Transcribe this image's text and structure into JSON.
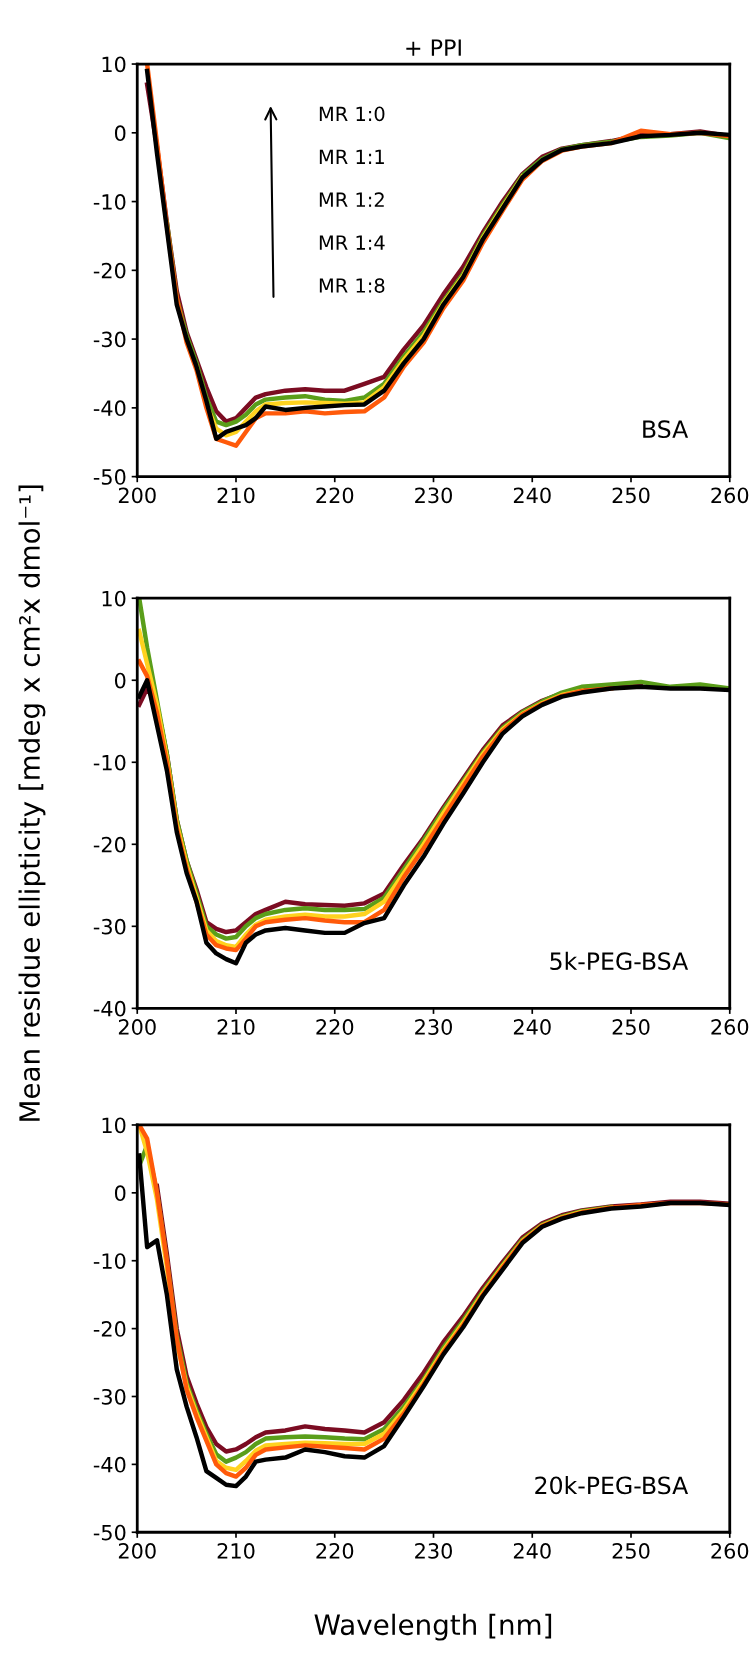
{
  "chart_data": [
    {
      "type": "line",
      "title": "+ PPI",
      "annotations": [
        "MR 1:0",
        "MR 1:1",
        "MR 1:2",
        "MR 1:4",
        "MR 1:8",
        "BSA"
      ],
      "x": [
        201,
        202,
        203,
        204,
        205,
        206,
        207,
        208,
        209,
        210,
        211,
        212,
        213,
        215,
        217,
        219,
        221,
        223,
        225,
        227,
        229,
        231,
        233,
        235,
        237,
        239,
        241,
        243,
        245,
        248,
        251,
        254,
        257,
        260
      ],
      "xlim": [
        200,
        260
      ],
      "xticks": [
        200,
        210,
        220,
        230,
        240,
        250,
        260
      ],
      "ylim": [
        -50,
        10
      ],
      "yticks": [
        -50,
        -40,
        -30,
        -20,
        -10,
        0,
        10
      ],
      "grid": false,
      "legend": false,
      "series": [
        {
          "color": "#7b0c22",
          "values": [
            7,
            -2,
            -13,
            -23,
            -29,
            -33,
            -37,
            -40.5,
            -42,
            -41.5,
            -40,
            -38.5,
            -38,
            -37.5,
            -37.3,
            -37.5,
            -37.5,
            -36.5,
            -35.5,
            -31.5,
            -28,
            -23.5,
            -19.5,
            -14.5,
            -10,
            -6,
            -3.5,
            -2.3,
            -1.8,
            -1.2,
            -0.3,
            -0.2,
            0.2,
            -0.5
          ]
        },
        {
          "color": "#5a9e1a",
          "values": [
            null,
            null,
            -13,
            -24,
            -29.5,
            -33.5,
            -38.5,
            -42,
            -42.5,
            -42,
            -41,
            -39.5,
            -38.8,
            -38.5,
            -38.3,
            -38.8,
            -39,
            -38.5,
            -36.5,
            -32.5,
            -29,
            -24.5,
            -20.5,
            -15,
            -10.5,
            -6.2,
            -3.8,
            -2.4,
            -1.8,
            -1.3,
            -0.6,
            -0.4,
            0,
            -0.8
          ]
        },
        {
          "color": "#ffd21f",
          "values": [
            null,
            null,
            null,
            null,
            null,
            -34,
            -39.5,
            -43,
            -44,
            -43.5,
            -42,
            -40.5,
            -39.5,
            -39.3,
            -39.2,
            -39.3,
            -39.4,
            -39.2,
            -37,
            -33,
            -29.5,
            -24.8,
            -20.8,
            -15.3,
            -10.8,
            -6.4,
            null,
            null,
            null,
            null,
            null,
            null,
            null,
            null
          ]
        },
        {
          "color": "#ff5a0a",
          "values": [
            10,
            -1.5,
            -13.5,
            -24,
            -30.5,
            -34.5,
            -40,
            -44.5,
            -45,
            -45.5,
            -43.5,
            -41.5,
            -40.8,
            -40.8,
            -40.5,
            -40.8,
            -40.6,
            -40.5,
            -38.5,
            -34,
            -30.5,
            -25.5,
            -21.5,
            -16,
            -11.3,
            -6.8,
            -4.1,
            -2.6,
            -2,
            -1.5,
            0.3,
            -0.2,
            0,
            -0.5
          ]
        },
        {
          "color": "#000000",
          "values": [
            9,
            -3,
            -14,
            -25,
            -30,
            -34,
            -39,
            -44.5,
            -43.5,
            -43,
            -42.5,
            -41.5,
            -39.8,
            -40.3,
            -40,
            -39.8,
            -39.6,
            -39.5,
            -37.5,
            -33.5,
            -30,
            -25,
            -21,
            -15.5,
            -11,
            -6.5,
            -4,
            -2.5,
            -2,
            -1.5,
            -0.5,
            -0.3,
            0,
            -0.3
          ]
        }
      ]
    },
    {
      "type": "line",
      "ylabel": "Mean residue ellipticity [mdeg x cm²x dmol⁻¹]",
      "annotations": [
        "5k-PEG-BSA"
      ],
      "x": [
        200.2,
        201,
        202,
        203,
        204,
        205,
        206,
        207,
        208,
        209,
        210,
        211,
        212,
        213,
        215,
        217,
        219,
        221,
        223,
        225,
        227,
        229,
        231,
        233,
        235,
        237,
        239,
        241,
        243,
        245,
        248,
        251,
        254,
        257,
        260
      ],
      "xlim": [
        200,
        260
      ],
      "xticks": [
        200,
        210,
        220,
        230,
        240,
        250,
        260
      ],
      "ylim": [
        -40,
        10
      ],
      "yticks": [
        -40,
        -30,
        -20,
        -10,
        0,
        10
      ],
      "grid": false,
      "legend": false,
      "series": [
        {
          "color": "#7b0c22",
          "values": [
            -3,
            -1,
            -3,
            -9,
            -17,
            -22,
            -25.5,
            -29.5,
            -30.3,
            -30.7,
            -30.5,
            -29.5,
            -28.5,
            -28,
            -27,
            -27.3,
            -27.4,
            -27.5,
            -27.2,
            -26,
            -22.5,
            -19.2,
            -15.5,
            -12,
            -8.5,
            -5.5,
            -3.8,
            -2.5,
            -1.6,
            -1,
            -0.8,
            -0.5,
            null,
            null,
            null
          ]
        },
        {
          "color": "#5a9e1a",
          "values": [
            10,
            4,
            -2.5,
            -9,
            -17,
            -22,
            -26,
            -30,
            -31,
            -31.5,
            -31.3,
            -30,
            -29,
            -28.5,
            -28,
            -27.8,
            -28,
            -28,
            -27.9,
            -26.5,
            -23,
            -19.5,
            -15.8,
            -12.3,
            -8.8,
            -5.8,
            -3.9,
            -2.6,
            -1.5,
            -0.8,
            -0.5,
            -0.2,
            -0.8,
            -0.5,
            -1
          ]
        },
        {
          "color": "#ffd21f",
          "values": [
            6,
            2,
            -3,
            -9.5,
            -17.5,
            -22.5,
            -26.5,
            -30.5,
            -31.8,
            -32.3,
            -32.5,
            -31,
            -29.8,
            -29.2,
            -28.8,
            -28.6,
            -28.8,
            -28.8,
            -28.5,
            -27,
            -23.5,
            -20,
            -16.2,
            -12.6,
            -9,
            -6,
            -4.1,
            -2.8,
            -1.8,
            -1.3,
            null,
            null,
            null,
            null,
            null
          ]
        },
        {
          "color": "#ff5a0a",
          "values": [
            2.3,
            0.5,
            -4,
            -10,
            -18,
            -23,
            -27,
            -31,
            -32.3,
            -32.7,
            -32.9,
            -31.5,
            -30,
            -29.5,
            -29.2,
            -29,
            -29.3,
            -29.5,
            -29.5,
            -28,
            -24,
            -20.5,
            -16.8,
            -13,
            -9.3,
            -6.2,
            -4.2,
            -2.9,
            -1.9,
            -1.3,
            -1,
            null,
            null,
            null,
            null
          ]
        },
        {
          "color": "#000000",
          "values": [
            -2,
            0,
            -5.5,
            -11,
            -18.5,
            -23.5,
            -27,
            -32,
            -33.3,
            -34,
            -34.5,
            -32,
            -31,
            -30.5,
            -30.2,
            -30.5,
            -30.8,
            -30.8,
            -29.6,
            -29,
            -25,
            -21.5,
            -17.5,
            -13.8,
            -10,
            -6.5,
            -4.4,
            -3,
            -2,
            -1.5,
            -1,
            -0.8,
            -1,
            -1,
            -1.2
          ]
        }
      ]
    },
    {
      "type": "line",
      "xlabel": "Wavelength [nm]",
      "annotations": [
        "20k-PEG-BSA"
      ],
      "x": [
        200.2,
        201,
        202,
        203,
        204,
        205,
        206,
        207,
        208,
        209,
        210,
        211,
        212,
        213,
        215,
        217,
        219,
        221,
        223,
        225,
        227,
        229,
        231,
        233,
        235,
        237,
        239,
        241,
        243,
        245,
        248,
        251,
        254,
        257,
        260
      ],
      "xlim": [
        200,
        260
      ],
      "xticks": [
        200,
        210,
        220,
        230,
        240,
        250,
        260
      ],
      "ylim": [
        -50,
        10
      ],
      "yticks": [
        -50,
        -40,
        -30,
        -20,
        -10,
        0,
        10
      ],
      "grid": false,
      "legend": false,
      "series": [
        {
          "color": "#7b0c22",
          "values": [
            null,
            null,
            1,
            -9,
            -20,
            -27,
            -31,
            -34.5,
            -37,
            -38.1,
            -37.8,
            -37,
            -36,
            -35.3,
            -35,
            -34.4,
            -34.8,
            -35,
            -35.3,
            -33.8,
            -30.5,
            -26.5,
            -22,
            -18.2,
            -14,
            -10.2,
            -6.6,
            -4.5,
            -3.3,
            -2.6,
            -2,
            -1.7,
            -1.3,
            -1.3,
            -1.6
          ]
        },
        {
          "color": "#5a9e1a",
          "values": [
            4,
            7,
            0,
            -10,
            -21,
            -28,
            -32,
            -35.5,
            -38.5,
            -39.6,
            -39,
            -38.2,
            -37,
            -36.2,
            -36,
            -35.9,
            -36,
            -36.2,
            -36.3,
            -34.8,
            -31.5,
            -27.5,
            -22.8,
            -18.8,
            -14.5,
            -10.6,
            -6.9,
            -4.7,
            -3.5,
            -2.7,
            -2.1,
            null,
            null,
            null,
            null
          ]
        },
        {
          "color": "#ffd21f",
          "values": [
            10,
            6,
            -1,
            -11,
            -22,
            -28.5,
            -32.5,
            -36,
            -39.5,
            -40.5,
            -40.8,
            -39.5,
            -38,
            -37.2,
            -37,
            -36.8,
            -36.9,
            -37,
            -37,
            -35.5,
            -32,
            -27.8,
            -23.2,
            -19.2,
            -14.8,
            -10.8,
            -7.1,
            -4.8,
            -3.6,
            -2.8,
            -2.2,
            null,
            null,
            null,
            null
          ]
        },
        {
          "color": "#ff5a0a",
          "values": [
            10,
            8,
            0,
            -10,
            -21.5,
            -29,
            -33,
            -36.5,
            -40,
            -41.3,
            -41.8,
            -40.5,
            -38.6,
            -37.8,
            -37.5,
            -37.2,
            -37.4,
            -37.6,
            -37.8,
            -36.2,
            -32.5,
            -28.2,
            -23.5,
            -19.5,
            -15,
            -11,
            -7.2,
            -4.9,
            -3.7,
            -2.9,
            -2.2,
            -1.8,
            -1.5,
            -1.5,
            -1.7
          ]
        },
        {
          "color": "#000000",
          "values": [
            5.5,
            -8,
            -7,
            -15,
            -26,
            -31.5,
            -36,
            -41,
            -42,
            -43,
            -43.2,
            -41.8,
            -39.6,
            -39.3,
            -39,
            -37.8,
            -38.2,
            -38.8,
            -39,
            -37.3,
            -33,
            -28.5,
            -23.8,
            -19.8,
            -15.2,
            -11.3,
            -7.4,
            -5,
            -3.8,
            -3,
            -2.3,
            -2,
            -1.5,
            -1.5,
            -1.8
          ]
        }
      ]
    }
  ]
}
